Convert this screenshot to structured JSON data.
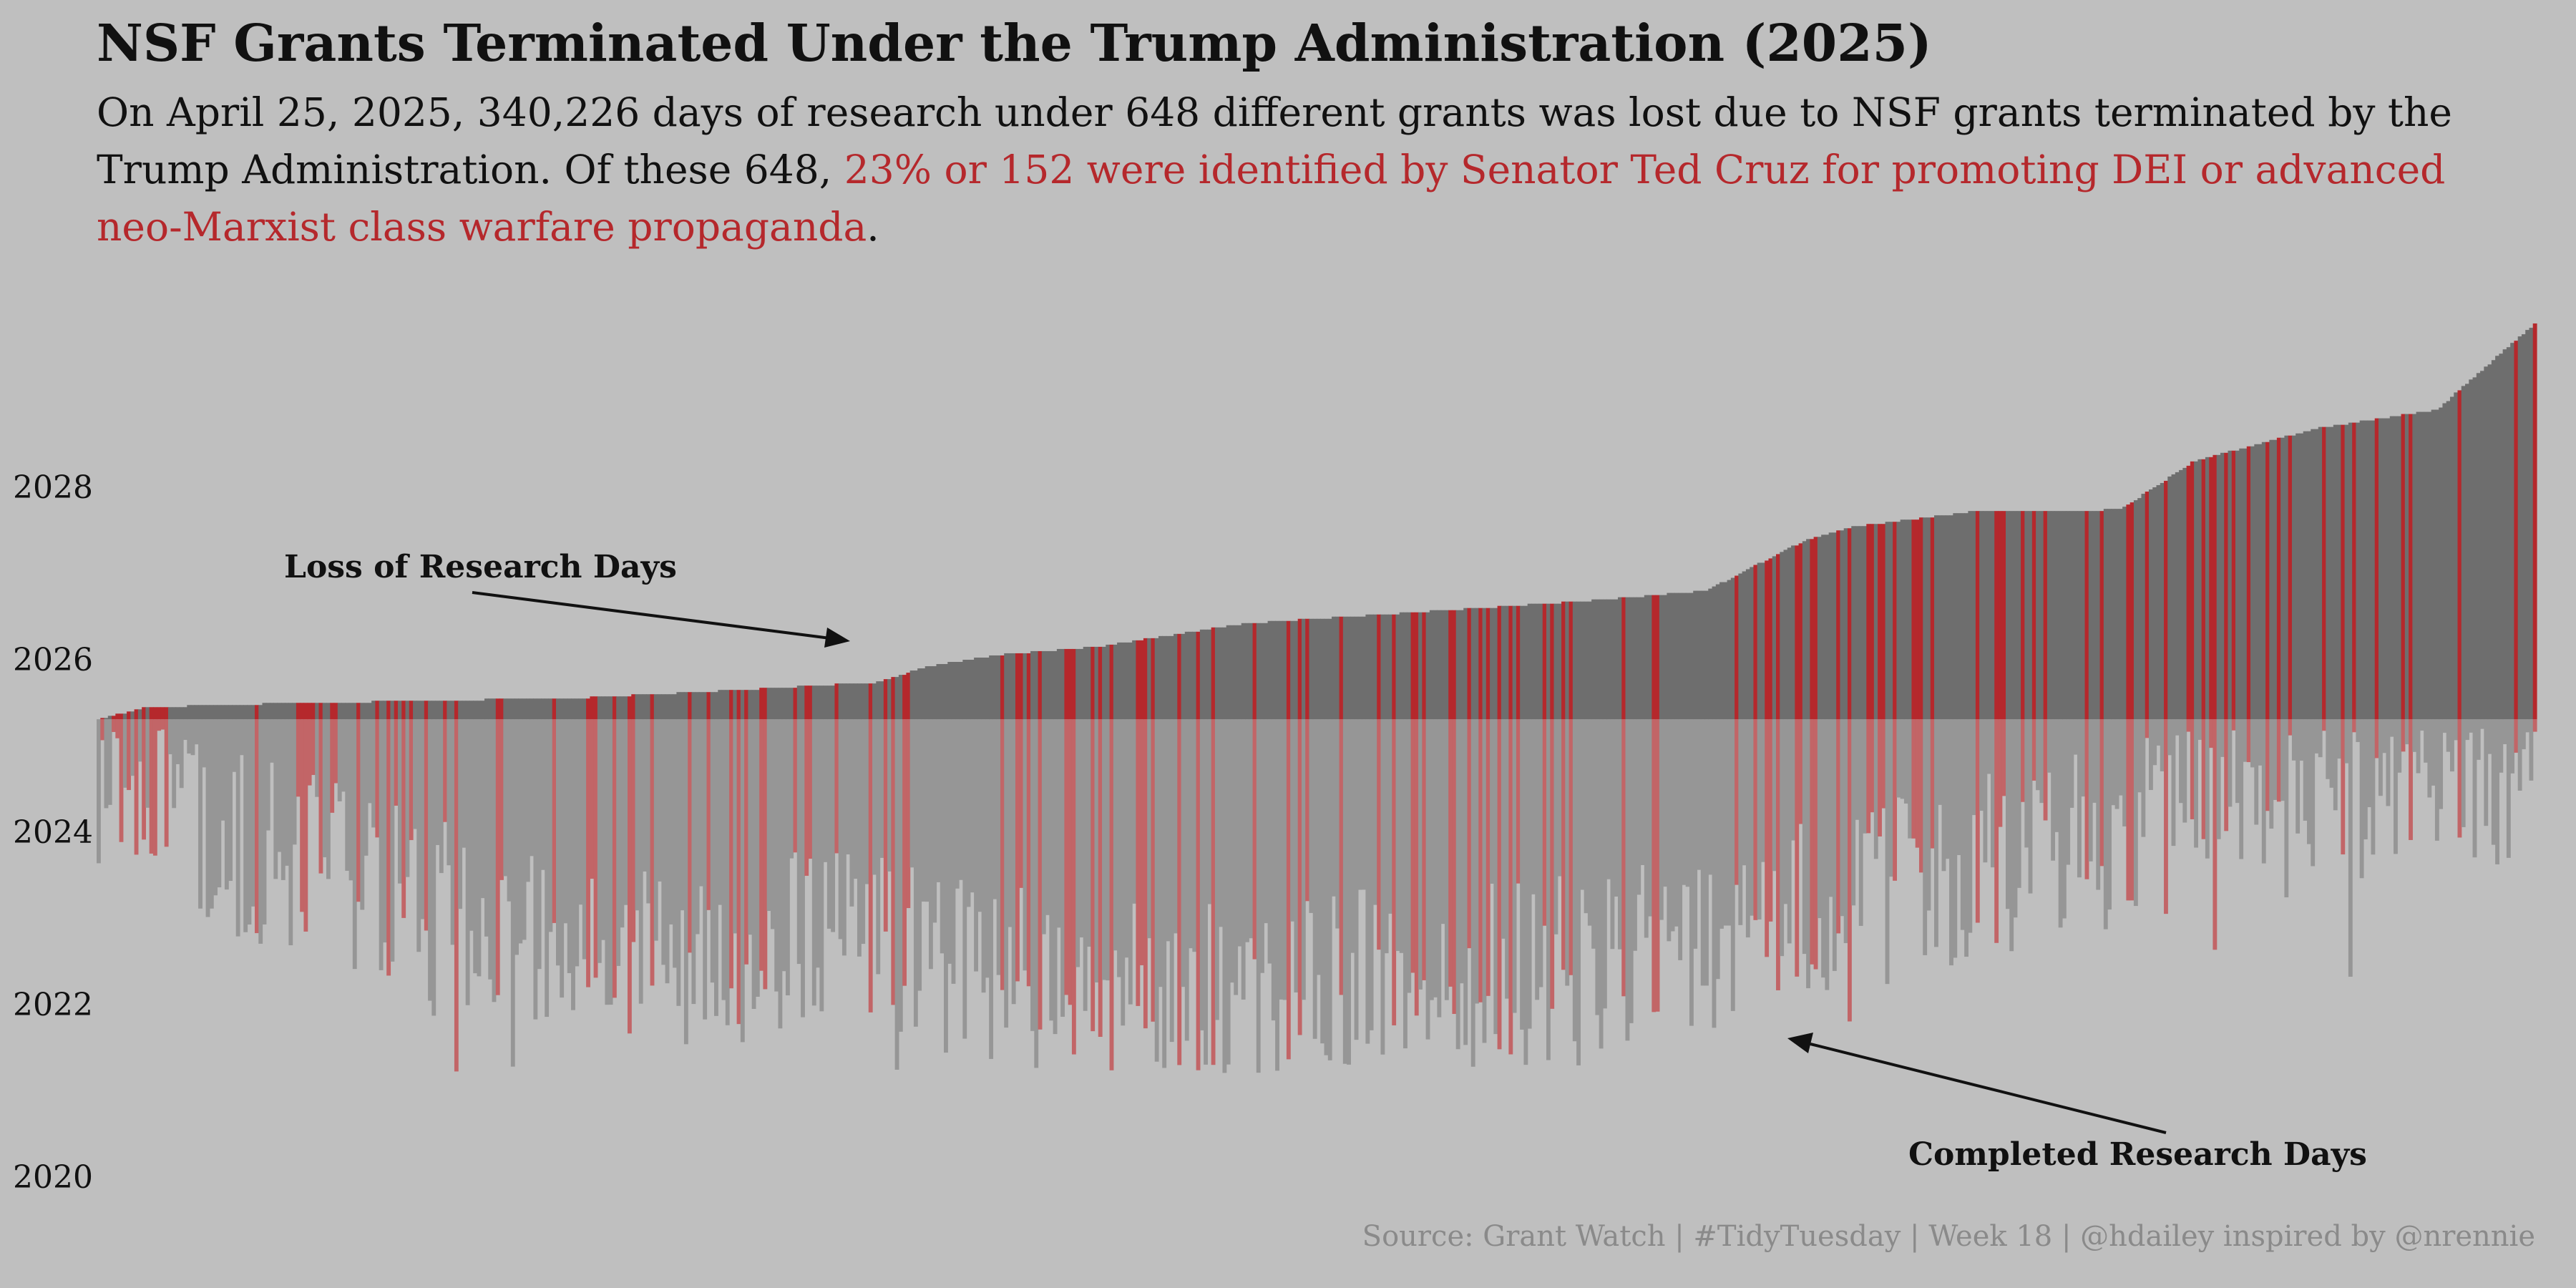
{
  "chart_data": {
    "type": "bar",
    "title": "NSF Grants Terminated Under the Trump Administration (2025)",
    "subtitle": {
      "part1": "On April 25, 2025, 340,226 days of research under 648 different grants was lost due to NSF grants terminated by the Trump Administration. Of these 648, ",
      "highlight": "23% or 152 were identified by Senator Ted Cruz for promoting DEI or advanced neo-Marxist class warfare propaganda",
      "part2": "."
    },
    "caption": "Source: Grant Watch | #TidyTuesday | Week 18 | @hdailey inspired by @nrennie",
    "termination_date": 2025.31,
    "ylim": [
      2020,
      2030
    ],
    "yticks": [
      "2020",
      "2022",
      "2024",
      "2026",
      "2028"
    ],
    "grid": false,
    "legend": "none",
    "n_grants": 648,
    "n_flagged": 152,
    "colors": {
      "lost": "#6e6e6e",
      "completed": "#969696",
      "flagged_lost": "#b5282c",
      "flagged_completed": "#c26567",
      "background": "#bfbfbf"
    },
    "annotations": [
      {
        "label": "Loss of Research Days"
      },
      {
        "label": "Completed Research Days"
      }
    ],
    "end_profile": [
      [
        0,
        2025.31
      ],
      [
        0.02,
        2025.45
      ],
      [
        0.07,
        2025.49
      ],
      [
        0.2,
        2025.56
      ],
      [
        0.27,
        2025.66
      ],
      [
        0.32,
        2025.74
      ],
      [
        0.34,
        2025.92
      ],
      [
        0.37,
        2026.06
      ],
      [
        0.41,
        2026.15
      ],
      [
        0.47,
        2026.42
      ],
      [
        0.61,
        2026.68
      ],
      [
        0.66,
        2026.8
      ],
      [
        0.7,
        2027.38
      ],
      [
        0.72,
        2027.54
      ],
      [
        0.77,
        2027.72
      ],
      [
        0.83,
        2027.74
      ],
      [
        0.86,
        2028.3
      ],
      [
        0.91,
        2028.68
      ],
      [
        0.96,
        2028.9
      ],
      [
        1,
        2029.9
      ]
    ],
    "start_profile": [
      [
        0,
        2024.4
      ],
      [
        0.1,
        2023.5
      ],
      [
        0.2,
        2022.4
      ],
      [
        0.3,
        2022.8
      ],
      [
        0.4,
        2022.2
      ],
      [
        0.5,
        2022.3
      ],
      [
        0.6,
        2022.4
      ],
      [
        0.7,
        2023.1
      ],
      [
        0.8,
        2023.8
      ],
      [
        0.9,
        2024.3
      ],
      [
        1,
        2024.8
      ]
    ]
  }
}
